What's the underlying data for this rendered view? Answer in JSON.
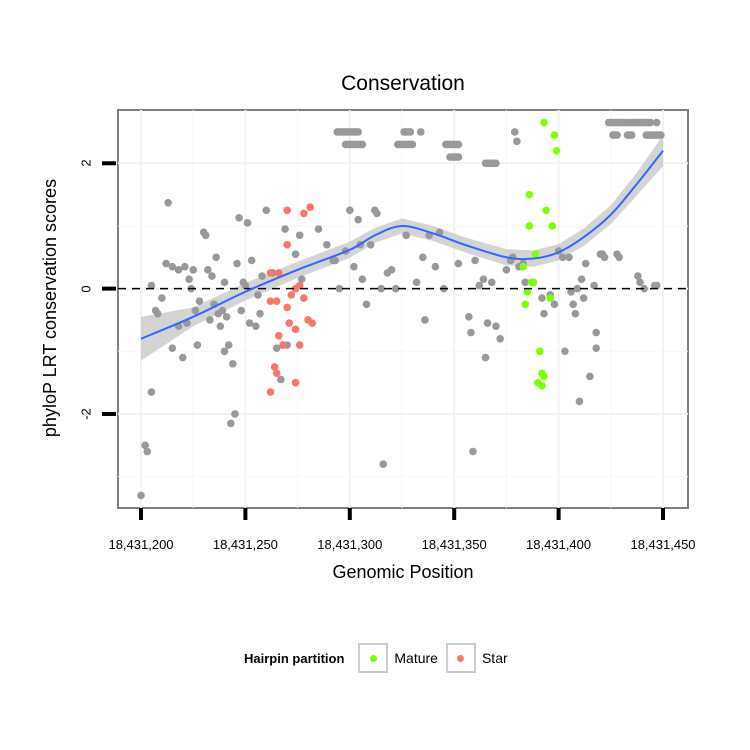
{
  "chart_data": {
    "type": "scatter",
    "title": "Conservation",
    "xlabel": "Genomic Position",
    "ylabel": "phyloP LRT conservation scores",
    "xlim": [
      18431200,
      18431450
    ],
    "ylim": [
      -3.5,
      2.85
    ],
    "x_ticks": [
      18431200,
      18431250,
      18431300,
      18431350,
      18431400,
      18431450
    ],
    "x_tick_labels": [
      "18,431,200",
      "18,431,250",
      "18,431,300",
      "18,431,350",
      "18,431,400",
      "18,431,450"
    ],
    "y_ticks": [
      -2,
      0,
      2
    ],
    "y_tick_labels": [
      "-2",
      "0",
      "2"
    ],
    "reference_line": 0,
    "grid": true,
    "legend": {
      "title": "Hairpin partition",
      "placement": "bottom",
      "entries": [
        {
          "label": "Mature",
          "color": "#7FFF00"
        },
        {
          "label": "Star",
          "color": "#F8766D"
        }
      ]
    },
    "colors": {
      "other": "#999999",
      "Mature": "#7FFF00",
      "Star": "#F8766D",
      "smooth": "#3366FF",
      "band": "#cccccc"
    },
    "series": [
      {
        "name": "Other",
        "points": [
          [
            18431200,
            -3.3
          ],
          [
            18431202,
            -2.5
          ],
          [
            18431203,
            -2.6
          ],
          [
            18431205,
            -1.65
          ],
          [
            18431205,
            0.05
          ],
          [
            18431207,
            -0.35
          ],
          [
            18431208,
            -0.4
          ],
          [
            18431210,
            -0.15
          ],
          [
            18431212,
            0.4
          ],
          [
            18431213,
            1.37
          ],
          [
            18431215,
            0.35
          ],
          [
            18431215,
            -0.95
          ],
          [
            18431218,
            0.3
          ],
          [
            18431218,
            -0.6
          ],
          [
            18431220,
            -1.1
          ],
          [
            18431221,
            0.35
          ],
          [
            18431222,
            -0.55
          ],
          [
            18431223,
            0.15
          ],
          [
            18431224,
            0.0
          ],
          [
            18431225,
            0.3
          ],
          [
            18431226,
            -0.35
          ],
          [
            18431227,
            -0.9
          ],
          [
            18431228,
            -0.2
          ],
          [
            18431230,
            0.9
          ],
          [
            18431231,
            0.85
          ],
          [
            18431232,
            0.3
          ],
          [
            18431233,
            -0.5
          ],
          [
            18431234,
            0.2
          ],
          [
            18431235,
            -0.25
          ],
          [
            18431236,
            0.5
          ],
          [
            18431237,
            -0.4
          ],
          [
            18431238,
            -0.6
          ],
          [
            18431239,
            -0.35
          ],
          [
            18431240,
            -1.0
          ],
          [
            18431240,
            0.1
          ],
          [
            18431241,
            -0.45
          ],
          [
            18431242,
            -0.9
          ],
          [
            18431243,
            -2.15
          ],
          [
            18431244,
            -1.2
          ],
          [
            18431245,
            -2.0
          ],
          [
            18431246,
            0.4
          ],
          [
            18431247,
            1.13
          ],
          [
            18431248,
            -0.35
          ],
          [
            18431249,
            0.1
          ],
          [
            18431250,
            0.05
          ],
          [
            18431251,
            1.05
          ],
          [
            18431252,
            -0.55
          ],
          [
            18431253,
            0.45
          ],
          [
            18431255,
            -0.6
          ],
          [
            18431256,
            -0.1
          ],
          [
            18431257,
            -0.4
          ],
          [
            18431258,
            0.2
          ],
          [
            18431260,
            1.25
          ],
          [
            18431263,
            0.25
          ],
          [
            18431265,
            -0.95
          ],
          [
            18431267,
            -1.45
          ],
          [
            18431269,
            0.95
          ],
          [
            18431270,
            -0.9
          ],
          [
            18431274,
            0.55
          ],
          [
            18431276,
            0.85
          ],
          [
            18431277,
            0.15
          ],
          [
            18431285,
            0.95
          ],
          [
            18431289,
            0.7
          ],
          [
            18431292,
            0.45
          ],
          [
            18431293,
            0.45
          ],
          [
            18431295,
            0.0
          ],
          [
            18431298,
            0.6
          ],
          [
            18431300,
            1.25
          ],
          [
            18431302,
            0.35
          ],
          [
            18431304,
            1.1
          ],
          [
            18431305,
            0.7
          ],
          [
            18431306,
            0.15
          ],
          [
            18431308,
            -0.25
          ],
          [
            18431310,
            0.7
          ],
          [
            18431312,
            1.25
          ],
          [
            18431313,
            1.2
          ],
          [
            18431315,
            0.0
          ],
          [
            18431316,
            -2.8
          ],
          [
            18431318,
            0.25
          ],
          [
            18431320,
            0.3
          ],
          [
            18431322,
            0.0
          ],
          [
            18431327,
            0.85
          ],
          [
            18431332,
            0.1
          ],
          [
            18431335,
            0.5
          ],
          [
            18431336,
            -0.5
          ],
          [
            18431338,
            0.85
          ],
          [
            18431341,
            0.35
          ],
          [
            18431343,
            0.9
          ],
          [
            18431345,
            0.0
          ],
          [
            18431352,
            0.4
          ],
          [
            18431357,
            -0.45
          ],
          [
            18431358,
            -0.7
          ],
          [
            18431359,
            -2.6
          ],
          [
            18431360,
            0.45
          ],
          [
            18431362,
            0.05
          ],
          [
            18431364,
            0.15
          ],
          [
            18431365,
            -1.1
          ],
          [
            18431366,
            -0.55
          ],
          [
            18431368,
            0.1
          ],
          [
            18431370,
            -0.6
          ],
          [
            18431372,
            -0.8
          ],
          [
            18431375,
            0.3
          ],
          [
            18431377,
            0.45
          ],
          [
            18431378,
            0.5
          ],
          [
            18431379,
            2.5
          ],
          [
            18431380,
            2.35
          ],
          [
            18431381,
            0.35
          ],
          [
            18431383,
            0.4
          ],
          [
            18431384,
            0.1
          ],
          [
            18431392,
            -0.15
          ],
          [
            18431393,
            -0.4
          ],
          [
            18431396,
            -0.1
          ],
          [
            18431398,
            -0.25
          ],
          [
            18431400,
            0.6
          ],
          [
            18431402,
            0.5
          ],
          [
            18431403,
            -1.0
          ],
          [
            18431405,
            0.5
          ],
          [
            18431406,
            -0.05
          ],
          [
            18431407,
            -0.25
          ],
          [
            18431408,
            -0.4
          ],
          [
            18431409,
            0.0
          ],
          [
            18431410,
            -1.8
          ],
          [
            18431411,
            0.15
          ],
          [
            18431412,
            -0.15
          ],
          [
            18431413,
            0.4
          ],
          [
            18431415,
            -1.4
          ],
          [
            18431417,
            0.05
          ],
          [
            18431418,
            -0.7
          ],
          [
            18431418,
            -0.95
          ],
          [
            18431420,
            0.55
          ],
          [
            18431421,
            0.55
          ],
          [
            18431422,
            0.5
          ],
          [
            18431428,
            0.55
          ],
          [
            18431429,
            0.5
          ],
          [
            18431438,
            0.2
          ],
          [
            18431439,
            0.1
          ],
          [
            18431441,
            0.0
          ],
          [
            18431446,
            0.05
          ],
          [
            18431447,
            0.05
          ],
          [
            18431294,
            2.5
          ],
          [
            18431295,
            2.5
          ],
          [
            18431296,
            2.5
          ],
          [
            18431297,
            2.5
          ],
          [
            18431298,
            2.5
          ],
          [
            18431299,
            2.5
          ],
          [
            18431300,
            2.5
          ],
          [
            18431301,
            2.5
          ],
          [
            18431302,
            2.5
          ],
          [
            18431303,
            2.5
          ],
          [
            18431304,
            2.5
          ],
          [
            18431298,
            2.3
          ],
          [
            18431299,
            2.3
          ],
          [
            18431300,
            2.3
          ],
          [
            18431301,
            2.3
          ],
          [
            18431302,
            2.3
          ],
          [
            18431303,
            2.3
          ],
          [
            18431304,
            2.3
          ],
          [
            18431305,
            2.3
          ],
          [
            18431306,
            2.3
          ],
          [
            18431323,
            2.3
          ],
          [
            18431324,
            2.3
          ],
          [
            18431325,
            2.3
          ],
          [
            18431326,
            2.3
          ],
          [
            18431327,
            2.3
          ],
          [
            18431328,
            2.3
          ],
          [
            18431329,
            2.3
          ],
          [
            18431330,
            2.3
          ],
          [
            18431326,
            2.5
          ],
          [
            18431327,
            2.5
          ],
          [
            18431328,
            2.5
          ],
          [
            18431329,
            2.5
          ],
          [
            18431334,
            2.5
          ],
          [
            18431346,
            2.3
          ],
          [
            18431347,
            2.3
          ],
          [
            18431348,
            2.3
          ],
          [
            18431349,
            2.3
          ],
          [
            18431350,
            2.3
          ],
          [
            18431351,
            2.3
          ],
          [
            18431352,
            2.3
          ],
          [
            18431348,
            2.1
          ],
          [
            18431349,
            2.1
          ],
          [
            18431350,
            2.1
          ],
          [
            18431351,
            2.1
          ],
          [
            18431352,
            2.1
          ],
          [
            18431365,
            2.0
          ],
          [
            18431366,
            2.0
          ],
          [
            18431367,
            2.0
          ],
          [
            18431368,
            2.0
          ],
          [
            18431369,
            2.0
          ],
          [
            18431370,
            2.0
          ],
          [
            18431424,
            2.65
          ],
          [
            18431425,
            2.65
          ],
          [
            18431426,
            2.65
          ],
          [
            18431427,
            2.65
          ],
          [
            18431428,
            2.65
          ],
          [
            18431429,
            2.65
          ],
          [
            18431430,
            2.65
          ],
          [
            18431431,
            2.65
          ],
          [
            18431432,
            2.65
          ],
          [
            18431433,
            2.65
          ],
          [
            18431434,
            2.65
          ],
          [
            18431435,
            2.65
          ],
          [
            18431436,
            2.65
          ],
          [
            18431437,
            2.65
          ],
          [
            18431438,
            2.65
          ],
          [
            18431439,
            2.65
          ],
          [
            18431440,
            2.65
          ],
          [
            18431441,
            2.65
          ],
          [
            18431442,
            2.65
          ],
          [
            18431443,
            2.65
          ],
          [
            18431444,
            2.65
          ],
          [
            18431447,
            2.65
          ],
          [
            18431426,
            2.45
          ],
          [
            18431427,
            2.45
          ],
          [
            18431428,
            2.45
          ],
          [
            18431433,
            2.45
          ],
          [
            18431434,
            2.45
          ],
          [
            18431435,
            2.45
          ],
          [
            18431442,
            2.45
          ],
          [
            18431443,
            2.45
          ],
          [
            18431444,
            2.45
          ],
          [
            18431445,
            2.45
          ],
          [
            18431446,
            2.45
          ],
          [
            18431447,
            2.45
          ],
          [
            18431448,
            2.45
          ],
          [
            18431449,
            2.45
          ]
        ]
      },
      {
        "name": "Mature",
        "points": [
          [
            18431393,
            2.65
          ],
          [
            18431398,
            2.45
          ],
          [
            18431399,
            2.2
          ],
          [
            18431386,
            1.5
          ],
          [
            18431386,
            1.0
          ],
          [
            18431394,
            1.25
          ],
          [
            18431397,
            1.0
          ],
          [
            18431389,
            0.55
          ],
          [
            18431383,
            0.35
          ],
          [
            18431387,
            0.1
          ],
          [
            18431388,
            0.1
          ],
          [
            18431385,
            -0.05
          ],
          [
            18431384,
            -0.25
          ],
          [
            18431396,
            -0.15
          ],
          [
            18431391,
            -1.0
          ],
          [
            18431392,
            -1.35
          ],
          [
            18431393,
            -1.4
          ],
          [
            18431390,
            -1.5
          ],
          [
            18431392,
            -1.55
          ]
        ]
      },
      {
        "name": "Star",
        "points": [
          [
            18431270,
            1.25
          ],
          [
            18431278,
            1.2
          ],
          [
            18431281,
            1.3
          ],
          [
            18431270,
            0.7
          ],
          [
            18431262,
            0.25
          ],
          [
            18431266,
            0.25
          ],
          [
            18431274,
            0.0
          ],
          [
            18431276,
            0.05
          ],
          [
            18431272,
            -0.1
          ],
          [
            18431278,
            -0.15
          ],
          [
            18431262,
            -0.2
          ],
          [
            18431265,
            -0.2
          ],
          [
            18431270,
            -0.3
          ],
          [
            18431271,
            -0.55
          ],
          [
            18431280,
            -0.5
          ],
          [
            18431282,
            -0.55
          ],
          [
            18431274,
            -0.65
          ],
          [
            18431266,
            -0.75
          ],
          [
            18431268,
            -0.9
          ],
          [
            18431276,
            -0.9
          ],
          [
            18431264,
            -1.25
          ],
          [
            18431265,
            -1.35
          ],
          [
            18431274,
            -1.5
          ],
          [
            18431262,
            -1.65
          ]
        ]
      }
    ],
    "smooth": {
      "x": [
        18431200,
        18431225,
        18431250,
        18431275,
        18431300,
        18431312,
        18431325,
        18431340,
        18431355,
        18431375,
        18431388,
        18431400,
        18431412,
        18431425,
        18431437,
        18431450
      ],
      "y": [
        -0.8,
        -0.45,
        -0.05,
        0.3,
        0.62,
        0.85,
        1.0,
        0.88,
        0.7,
        0.5,
        0.48,
        0.58,
        0.82,
        1.18,
        1.65,
        2.2
      ],
      "se": [
        0.35,
        0.15,
        0.14,
        0.13,
        0.13,
        0.12,
        0.12,
        0.12,
        0.12,
        0.13,
        0.13,
        0.13,
        0.14,
        0.15,
        0.18,
        0.25
      ]
    }
  }
}
